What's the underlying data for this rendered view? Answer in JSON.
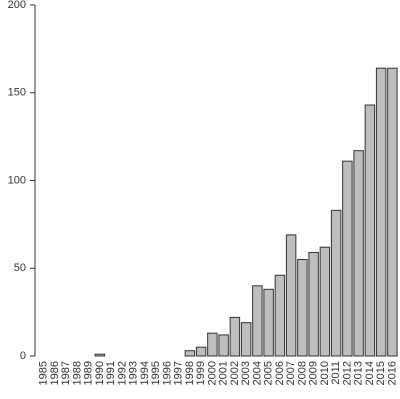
{
  "chart_data": {
    "type": "bar",
    "categories": [
      "1985",
      "1986",
      "1987",
      "1988",
      "1989",
      "1990",
      "1991",
      "1992",
      "1993",
      "1994",
      "1995",
      "1996",
      "1997",
      "1998",
      "1999",
      "2000",
      "2001",
      "2002",
      "2003",
      "2004",
      "2005",
      "2006",
      "2007",
      "2008",
      "2009",
      "2010",
      "2011",
      "2012",
      "2013",
      "2014",
      "2015",
      "2016"
    ],
    "values": [
      0,
      0,
      0,
      0,
      0,
      1,
      0,
      0,
      0,
      0,
      0,
      0,
      0,
      3,
      5,
      13,
      12,
      22,
      19,
      40,
      38,
      46,
      69,
      55,
      59,
      62,
      83,
      111,
      117,
      143,
      164,
      164
    ],
    "color": "#bebebe",
    "ylim": [
      0,
      200
    ],
    "yticks": [
      0,
      50,
      100,
      150,
      200
    ]
  }
}
